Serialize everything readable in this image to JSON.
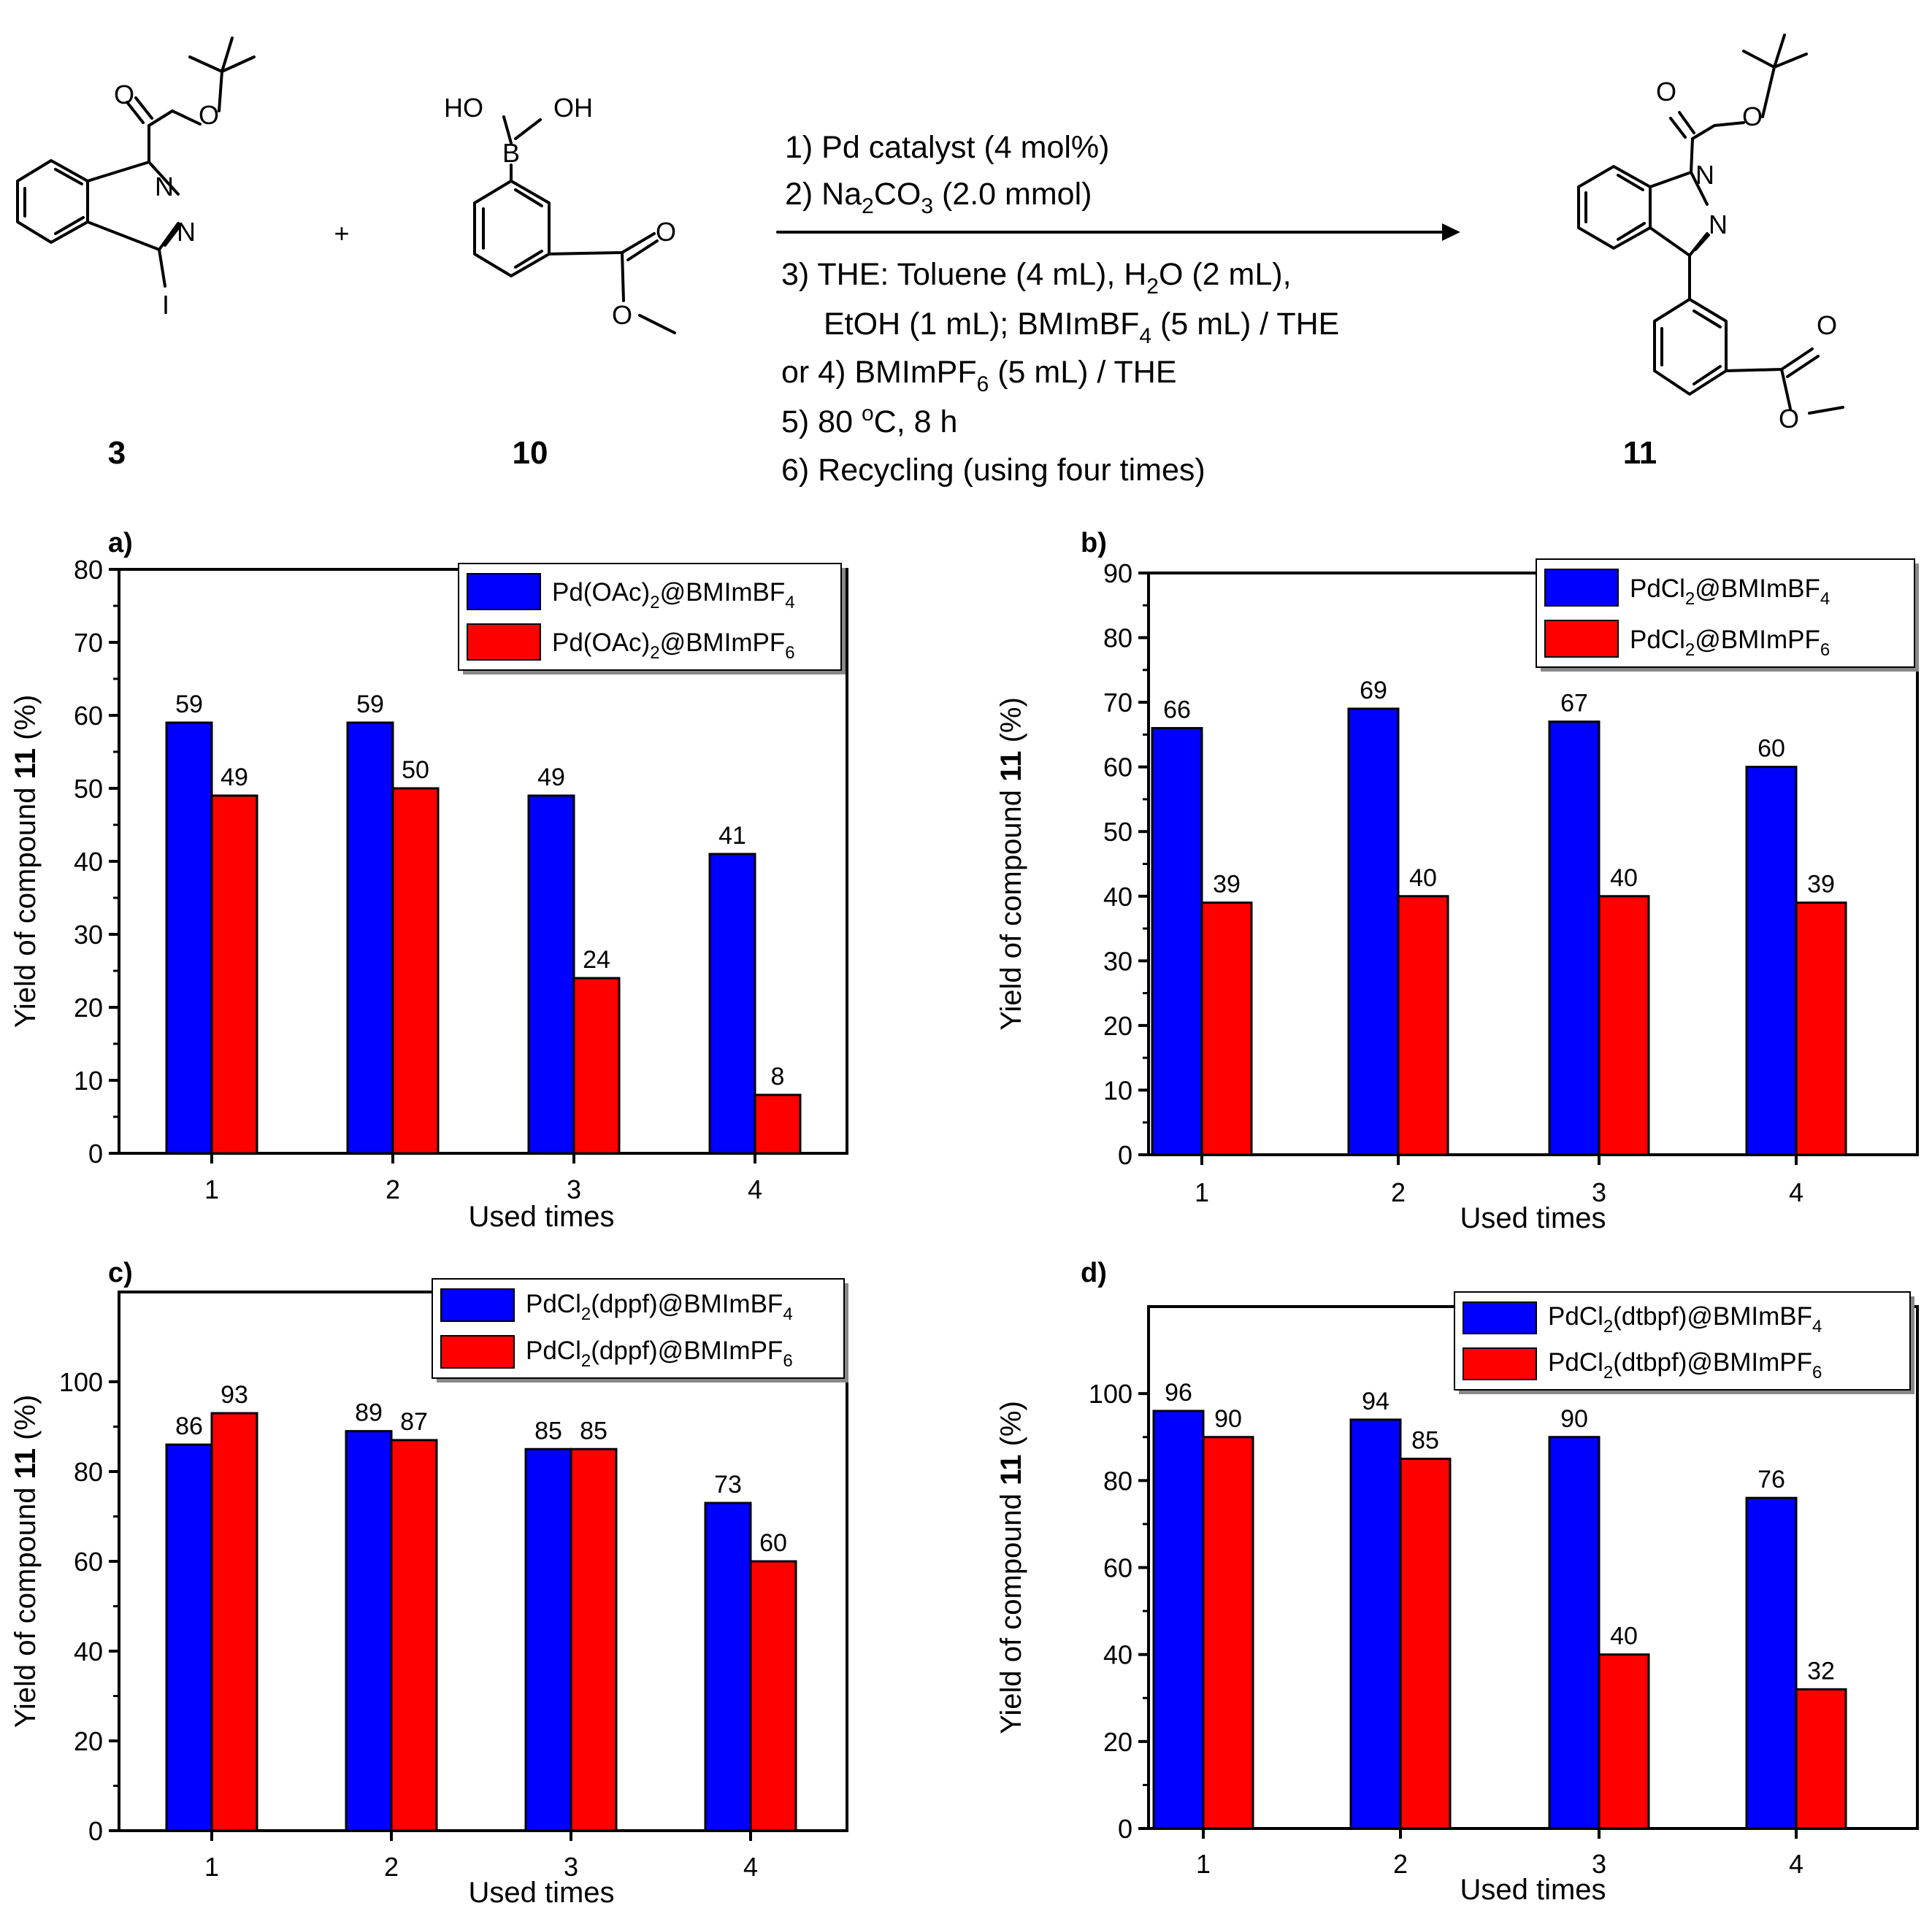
{
  "scheme": {
    "compounds": [
      {
        "id": "3",
        "label": "3",
        "iodo": "I",
        "nitrogen": "N"
      },
      {
        "id": "10",
        "label": "10",
        "boron": "B",
        "hydroxyl_left": "HO",
        "hydroxyl_right": "OH"
      },
      {
        "id": "11",
        "label": "11",
        "nitrogen": "N"
      }
    ],
    "plus": "+",
    "oxygen": "O",
    "conditions": [
      {
        "num": "1)",
        "pre": " Pd catalyst (4 mol%)"
      },
      {
        "num": "2)",
        "pre": " Na",
        "sub1": "2",
        "mid": "CO",
        "sub2": "3",
        "post": " (2.0 mmol)"
      },
      {
        "num": "3)",
        "pre": " THE: Toluene (4 mL), H",
        "sub1": "2",
        "post": "O (2 mL),"
      },
      {
        "num": "",
        "pre": "EtOH (1 mL); BMImBF",
        "sub1": "4",
        "post": " (5 mL) / THE"
      },
      {
        "num": "or 4)",
        "pre": " BMImPF",
        "sub1": "6",
        "post": " (5 mL) / THE"
      },
      {
        "num": "5)",
        "pre": " 80 ",
        "sup": "o",
        "post": "C, 8 h"
      },
      {
        "num": "6)",
        "pre": " Recycling (using four times)"
      }
    ]
  },
  "chart_data": [
    {
      "type": "bar",
      "panel": "a)",
      "categories": [
        "1",
        "2",
        "3",
        "4"
      ],
      "series": [
        {
          "name": "Pd(OAc)2@BMImBF4",
          "name_main": "Pd(OAc)",
          "name_sub1": "2",
          "name_mid": "@BMImBF",
          "name_sub2": "4",
          "color": "#0000ff",
          "values": [
            59,
            59,
            49,
            41
          ]
        },
        {
          "name": "Pd(OAc)2@BMImPF6",
          "name_main": "Pd(OAc)",
          "name_sub1": "2",
          "name_mid": "@BMImPF",
          "name_sub2": "6",
          "color": "#ff0000",
          "values": [
            49,
            50,
            24,
            8
          ]
        }
      ],
      "ylim": [
        0,
        80
      ],
      "yticks": [
        0,
        10,
        20,
        30,
        40,
        50,
        60,
        70,
        80
      ],
      "xlabel": "Used times",
      "ylabel_pre": "Yield of compound ",
      "ylabel_bold": "11",
      "ylabel_post": " (%)",
      "legend": "top-right",
      "grid": false
    },
    {
      "type": "bar",
      "panel": "b)",
      "categories": [
        "1",
        "2",
        "3",
        "4"
      ],
      "series": [
        {
          "name": "PdCl2@BMImBF4",
          "name_main": "PdCl",
          "name_sub1": "2",
          "name_mid": "@BMImBF",
          "name_sub2": "4",
          "color": "#0000ff",
          "values": [
            66,
            69,
            67,
            60
          ]
        },
        {
          "name": "PdCl2@BMImPF6",
          "name_main": "PdCl",
          "name_sub1": "2",
          "name_mid": "@BMImPF",
          "name_sub2": "6",
          "color": "#ff0000",
          "values": [
            39,
            40,
            40,
            39
          ]
        }
      ],
      "ylim": [
        0,
        90
      ],
      "yticks": [
        0,
        10,
        20,
        30,
        40,
        50,
        60,
        70,
        80,
        90
      ],
      "xlabel": "Used times",
      "ylabel_pre": "Yield of compound ",
      "ylabel_bold": "11",
      "ylabel_post": " (%)",
      "legend": "top-right",
      "grid": false
    },
    {
      "type": "bar",
      "panel": "c)",
      "categories": [
        "1",
        "2",
        "3",
        "4"
      ],
      "series": [
        {
          "name": "PdCl2(dppf)@BMImBF4",
          "name_main": "PdCl",
          "name_sub1": "2",
          "name_mid": "(dppf)@BMImBF",
          "name_sub2": "4",
          "color": "#0000ff",
          "values": [
            86,
            89,
            85,
            73
          ]
        },
        {
          "name": "PdCl2(dppf)@BMImPF6",
          "name_main": "PdCl",
          "name_sub1": "2",
          "name_mid": "(dppf)@BMImPF",
          "name_sub2": "6",
          "color": "#ff0000",
          "values": [
            93,
            87,
            85,
            60
          ]
        }
      ],
      "ylim": [
        0,
        120
      ],
      "yticks": [
        0,
        20,
        40,
        60,
        80,
        100
      ],
      "xlabel": "Used times",
      "ylabel_pre": "Yield of compound ",
      "ylabel_bold": "11",
      "ylabel_post": " (%)",
      "legend": "top-right",
      "grid": false
    },
    {
      "type": "bar",
      "panel": "d)",
      "categories": [
        "1",
        "2",
        "3",
        "4"
      ],
      "series": [
        {
          "name": "PdCl2(dtbpf)@BMImBF4",
          "name_main": "PdCl",
          "name_sub1": "2",
          "name_mid": "(dtbpf)@BMImBF",
          "name_sub2": "4",
          "color": "#0000ff",
          "values": [
            96,
            94,
            90,
            76
          ]
        },
        {
          "name": "PdCl2(dtbpf)@BMImPF6",
          "name_main": "PdCl",
          "name_sub1": "2",
          "name_mid": "(dtbpf)@BMImPF",
          "name_sub2": "6",
          "color": "#ff0000",
          "values": [
            90,
            85,
            40,
            32
          ]
        }
      ],
      "ylim": [
        0,
        120
      ],
      "yticks": [
        0,
        20,
        40,
        60,
        80,
        100
      ],
      "xlabel": "Used times",
      "ylabel_pre": "Yield of compound ",
      "ylabel_bold": "11",
      "ylabel_post": " (%)",
      "legend": "top-right",
      "grid": false
    }
  ]
}
